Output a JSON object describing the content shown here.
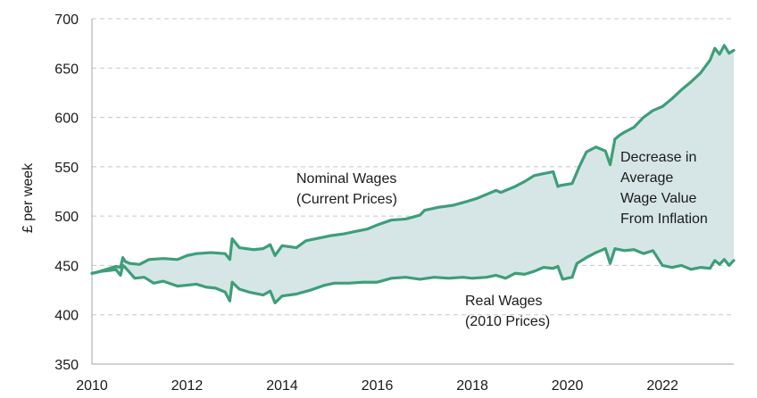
{
  "chart_data": {
    "type": "line",
    "title": "",
    "xlabel": "",
    "ylabel": "£ per week",
    "xlim": [
      2010,
      2023.5
    ],
    "ylim": [
      350,
      700
    ],
    "x_ticks": [
      2010,
      2012,
      2014,
      2016,
      2018,
      2020,
      2022
    ],
    "y_ticks": [
      350,
      400,
      450,
      500,
      550,
      600,
      650,
      700
    ],
    "grid": "horizontal-dashed",
    "colors": {
      "line": "#3e9e78",
      "fill": "#d6e6e6",
      "grid": "#c8c8c8",
      "text": "#1a1a1a"
    },
    "annotations": {
      "nominal": [
        "Nominal Wages",
        "(Current Prices)"
      ],
      "real": [
        "Real Wages",
        "(2010 Prices)"
      ],
      "gap": [
        "Decrease in",
        "Average",
        "Wage Value",
        "From Inflation"
      ]
    },
    "series": [
      {
        "name": "Nominal Wages",
        "x": [
          2010.0,
          2010.1,
          2010.3,
          2010.5,
          2010.6,
          2010.65,
          2010.7,
          2010.8,
          2011.0,
          2011.2,
          2011.5,
          2011.8,
          2012.0,
          2012.2,
          2012.5,
          2012.8,
          2012.9,
          2012.95,
          2013.1,
          2013.4,
          2013.6,
          2013.75,
          2013.85,
          2014.0,
          2014.3,
          2014.5,
          2015.0,
          2015.3,
          2015.5,
          2015.8,
          2016.0,
          2016.3,
          2016.6,
          2016.9,
          2017.0,
          2017.3,
          2017.6,
          2017.9,
          2018.1,
          2018.3,
          2018.5,
          2018.6,
          2018.9,
          2019.1,
          2019.3,
          2019.5,
          2019.7,
          2019.8,
          2019.85,
          2020.1,
          2020.25,
          2020.4,
          2020.6,
          2020.8,
          2020.9,
          2021.0,
          2021.1,
          2021.2,
          2021.4,
          2021.6,
          2021.8,
          2022.0,
          2022.2,
          2022.4,
          2022.6,
          2022.8,
          2023.0,
          2023.1,
          2023.2,
          2023.3,
          2023.4,
          2023.5
        ],
        "values": [
          442,
          443,
          446,
          449,
          448,
          458,
          454,
          452,
          451,
          456,
          457,
          456,
          460,
          462,
          463,
          462,
          456,
          477,
          468,
          466,
          467,
          471,
          460,
          470,
          468,
          475,
          480,
          482,
          484,
          487,
          491,
          496,
          497,
          501,
          506,
          509,
          511,
          515,
          518,
          522,
          526,
          524,
          530,
          535,
          541,
          543,
          545,
          530,
          531,
          533,
          550,
          565,
          570,
          566,
          552,
          578,
          582,
          585,
          590,
          600,
          607,
          611,
          619,
          628,
          636,
          645,
          658,
          670,
          664,
          673,
          665,
          668
        ]
      },
      {
        "name": "Real Wages",
        "x": [
          2010.0,
          2010.2,
          2010.4,
          2010.5,
          2010.6,
          2010.65,
          2010.7,
          2010.9,
          2011.1,
          2011.3,
          2011.5,
          2011.8,
          2012.0,
          2012.2,
          2012.4,
          2012.6,
          2012.8,
          2012.9,
          2012.95,
          2013.1,
          2013.3,
          2013.6,
          2013.75,
          2013.85,
          2014.0,
          2014.3,
          2014.6,
          2014.9,
          2015.1,
          2015.4,
          2015.7,
          2016.0,
          2016.3,
          2016.6,
          2016.9,
          2017.2,
          2017.5,
          2017.8,
          2018.0,
          2018.3,
          2018.5,
          2018.7,
          2018.9,
          2019.1,
          2019.3,
          2019.5,
          2019.7,
          2019.8,
          2019.9,
          2020.1,
          2020.2,
          2020.4,
          2020.6,
          2020.8,
          2020.9,
          2021.0,
          2021.2,
          2021.4,
          2021.6,
          2021.8,
          2022.0,
          2022.2,
          2022.4,
          2022.6,
          2022.8,
          2023.0,
          2023.1,
          2023.2,
          2023.3,
          2023.4,
          2023.5
        ],
        "values": [
          442,
          444,
          445,
          446,
          440,
          450,
          448,
          437,
          438,
          432,
          434,
          429,
          430,
          431,
          428,
          427,
          423,
          414,
          433,
          426,
          423,
          420,
          424,
          412,
          419,
          421,
          425,
          430,
          432,
          432,
          433,
          433,
          437,
          438,
          436,
          438,
          437,
          438,
          437,
          438,
          440,
          437,
          442,
          441,
          444,
          448,
          447,
          449,
          436,
          438,
          452,
          458,
          463,
          467,
          452,
          467,
          465,
          466,
          462,
          465,
          450,
          448,
          450,
          446,
          448,
          447,
          455,
          451,
          456,
          450,
          455
        ]
      }
    ]
  }
}
